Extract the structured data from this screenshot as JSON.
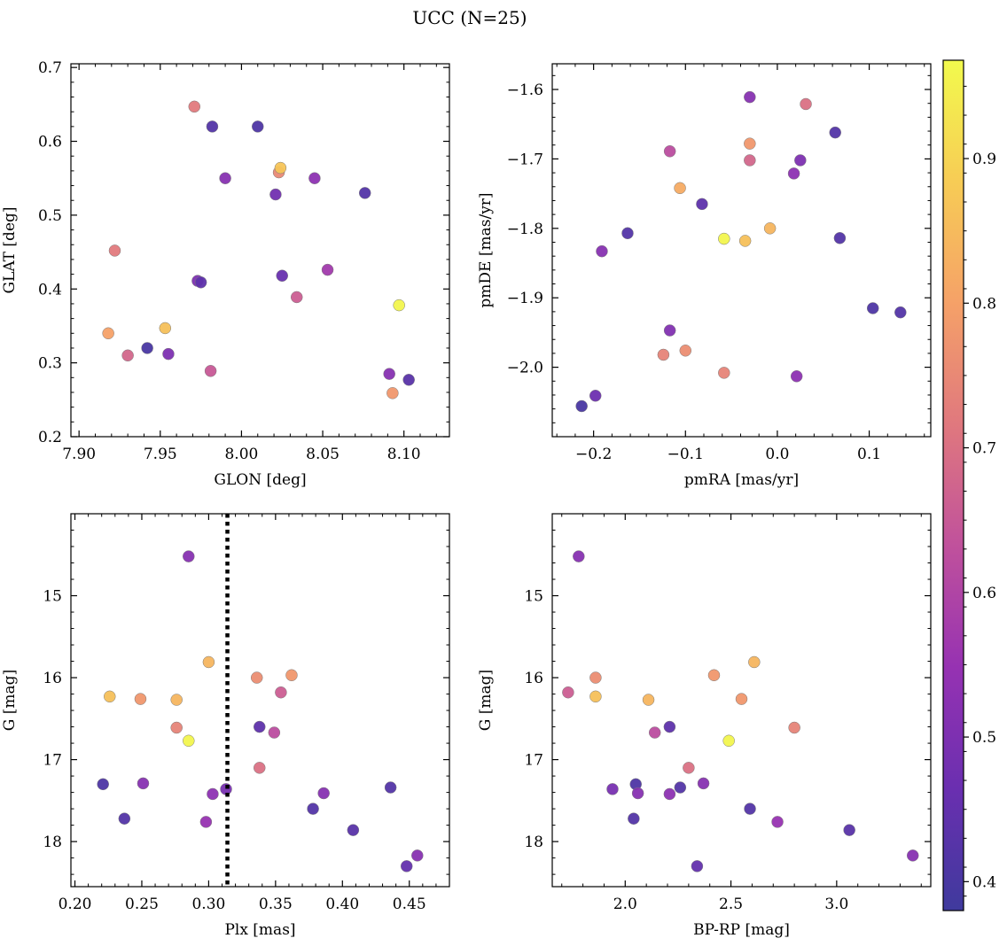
{
  "figure_title": "UCC (N=25)",
  "colormap": {
    "name": "plasma",
    "stops": [
      "#3f3a9d",
      "#6a2fb0",
      "#9632b2",
      "#c0519c",
      "#e0787e",
      "#f5a168",
      "#f7cc55",
      "#f2fa4d"
    ]
  },
  "chart_data": [
    {
      "type": "scatter",
      "xlabel": "GLON [deg]",
      "ylabel": "GLAT [deg]",
      "xlim": [
        7.895,
        8.128
      ],
      "ylim": [
        0.2,
        0.705
      ],
      "xticks": [
        "7.90",
        "7.95",
        "8.00",
        "8.05",
        "8.10"
      ],
      "xtick_values": [
        7.9,
        7.95,
        8.0,
        8.05,
        8.1
      ],
      "yticks": [
        "0.2",
        "0.3",
        "0.4",
        "0.5",
        "0.6",
        "0.7"
      ],
      "ytick_values": [
        0.2,
        0.3,
        0.4,
        0.5,
        0.6,
        0.7
      ],
      "points": [
        {
          "x": 7.971,
          "y": 0.647,
          "c": 0.72
        },
        {
          "x": 7.982,
          "y": 0.62,
          "c": 0.42
        },
        {
          "x": 8.01,
          "y": 0.62,
          "c": 0.41
        },
        {
          "x": 8.023,
          "y": 0.558,
          "c": 0.75
        },
        {
          "x": 8.024,
          "y": 0.564,
          "c": 0.87
        },
        {
          "x": 7.99,
          "y": 0.55,
          "c": 0.52
        },
        {
          "x": 8.045,
          "y": 0.55,
          "c": 0.53
        },
        {
          "x": 8.021,
          "y": 0.528,
          "c": 0.48
        },
        {
          "x": 8.076,
          "y": 0.53,
          "c": 0.42
        },
        {
          "x": 7.922,
          "y": 0.452,
          "c": 0.72
        },
        {
          "x": 8.053,
          "y": 0.426,
          "c": 0.57
        },
        {
          "x": 8.025,
          "y": 0.418,
          "c": 0.46
        },
        {
          "x": 7.973,
          "y": 0.411,
          "c": 0.5
        },
        {
          "x": 7.975,
          "y": 0.409,
          "c": 0.44
        },
        {
          "x": 8.034,
          "y": 0.389,
          "c": 0.66
        },
        {
          "x": 8.097,
          "y": 0.378,
          "c": 0.96
        },
        {
          "x": 7.953,
          "y": 0.347,
          "c": 0.86
        },
        {
          "x": 7.918,
          "y": 0.34,
          "c": 0.8
        },
        {
          "x": 7.942,
          "y": 0.32,
          "c": 0.4
        },
        {
          "x": 7.955,
          "y": 0.312,
          "c": 0.5
        },
        {
          "x": 7.93,
          "y": 0.31,
          "c": 0.68
        },
        {
          "x": 7.981,
          "y": 0.289,
          "c": 0.65
        },
        {
          "x": 8.091,
          "y": 0.285,
          "c": 0.52
        },
        {
          "x": 8.103,
          "y": 0.277,
          "c": 0.43
        },
        {
          "x": 8.093,
          "y": 0.259,
          "c": 0.78
        }
      ]
    },
    {
      "type": "scatter",
      "xlabel": "pmRA [mas/yr]",
      "ylabel": "pmDE [mas/yr]",
      "xlim": [
        -0.245,
        0.167
      ],
      "ylim": [
        -2.1,
        -1.563
      ],
      "xticks": [
        "−0.2",
        "−0.1",
        "0.0",
        "0.1"
      ],
      "xtick_values": [
        -0.2,
        -0.1,
        0.0,
        0.1
      ],
      "yticks": [
        "−1.6",
        "−1.7",
        "−1.8",
        "−1.9",
        "−2.0"
      ],
      "ytick_values": [
        -1.6,
        -1.7,
        -1.8,
        -1.9,
        -2.0
      ],
      "points": [
        {
          "x": -0.03,
          "y": -1.611,
          "c": 0.52
        },
        {
          "x": 0.031,
          "y": -1.621,
          "c": 0.7
        },
        {
          "x": 0.063,
          "y": -1.662,
          "c": 0.42
        },
        {
          "x": -0.117,
          "y": -1.689,
          "c": 0.62
        },
        {
          "x": -0.03,
          "y": -1.678,
          "c": 0.78
        },
        {
          "x": -0.03,
          "y": -1.702,
          "c": 0.68
        },
        {
          "x": 0.025,
          "y": -1.702,
          "c": 0.5
        },
        {
          "x": 0.018,
          "y": -1.721,
          "c": 0.53
        },
        {
          "x": -0.106,
          "y": -1.742,
          "c": 0.82
        },
        {
          "x": -0.082,
          "y": -1.765,
          "c": 0.44
        },
        {
          "x": -0.163,
          "y": -1.807,
          "c": 0.42
        },
        {
          "x": -0.058,
          "y": -1.815,
          "c": 0.96
        },
        {
          "x": -0.035,
          "y": -1.818,
          "c": 0.86
        },
        {
          "x": -0.008,
          "y": -1.8,
          "c": 0.84
        },
        {
          "x": 0.068,
          "y": -1.814,
          "c": 0.42
        },
        {
          "x": -0.191,
          "y": -1.833,
          "c": 0.52
        },
        {
          "x": 0.104,
          "y": -1.915,
          "c": 0.41
        },
        {
          "x": 0.134,
          "y": -1.921,
          "c": 0.42
        },
        {
          "x": -0.117,
          "y": -1.947,
          "c": 0.51
        },
        {
          "x": -0.124,
          "y": -1.982,
          "c": 0.74
        },
        {
          "x": -0.1,
          "y": -1.976,
          "c": 0.76
        },
        {
          "x": -0.058,
          "y": -2.008,
          "c": 0.74
        },
        {
          "x": 0.021,
          "y": -2.013,
          "c": 0.53
        },
        {
          "x": -0.198,
          "y": -2.041,
          "c": 0.47
        },
        {
          "x": -0.213,
          "y": -2.056,
          "c": 0.4
        }
      ]
    },
    {
      "type": "scatter",
      "xlabel": "Plx [mas]",
      "ylabel": "G [mag]",
      "xlim": [
        0.197,
        0.48
      ],
      "ylim": [
        18.55,
        14.0
      ],
      "yinverted": true,
      "vline": 0.314,
      "xticks": [
        "0.20",
        "0.25",
        "0.30",
        "0.35",
        "0.40",
        "0.45"
      ],
      "xtick_values": [
        0.2,
        0.25,
        0.3,
        0.35,
        0.4,
        0.45
      ],
      "yticks": [
        "15",
        "16",
        "17",
        "18"
      ],
      "ytick_values": [
        15,
        16,
        17,
        18
      ],
      "points": [
        {
          "x": 0.285,
          "y": 14.52,
          "c": 0.52
        },
        {
          "x": 0.3,
          "y": 15.81,
          "c": 0.84
        },
        {
          "x": 0.362,
          "y": 15.97,
          "c": 0.78
        },
        {
          "x": 0.336,
          "y": 16.0,
          "c": 0.76
        },
        {
          "x": 0.354,
          "y": 16.18,
          "c": 0.66
        },
        {
          "x": 0.226,
          "y": 16.23,
          "c": 0.86
        },
        {
          "x": 0.249,
          "y": 16.26,
          "c": 0.78
        },
        {
          "x": 0.276,
          "y": 16.27,
          "c": 0.84
        },
        {
          "x": 0.276,
          "y": 16.61,
          "c": 0.74
        },
        {
          "x": 0.338,
          "y": 16.6,
          "c": 0.44
        },
        {
          "x": 0.349,
          "y": 16.67,
          "c": 0.62
        },
        {
          "x": 0.285,
          "y": 16.77,
          "c": 0.96
        },
        {
          "x": 0.338,
          "y": 17.1,
          "c": 0.7
        },
        {
          "x": 0.221,
          "y": 17.3,
          "c": 0.41
        },
        {
          "x": 0.251,
          "y": 17.29,
          "c": 0.52
        },
        {
          "x": 0.303,
          "y": 17.42,
          "c": 0.53
        },
        {
          "x": 0.313,
          "y": 17.36,
          "c": 0.49
        },
        {
          "x": 0.386,
          "y": 17.41,
          "c": 0.52
        },
        {
          "x": 0.436,
          "y": 17.34,
          "c": 0.42
        },
        {
          "x": 0.378,
          "y": 17.6,
          "c": 0.42
        },
        {
          "x": 0.237,
          "y": 17.72,
          "c": 0.42
        },
        {
          "x": 0.298,
          "y": 17.76,
          "c": 0.55
        },
        {
          "x": 0.408,
          "y": 17.86,
          "c": 0.43
        },
        {
          "x": 0.456,
          "y": 18.17,
          "c": 0.52
        },
        {
          "x": 0.448,
          "y": 18.3,
          "c": 0.45
        }
      ]
    },
    {
      "type": "scatter",
      "xlabel": "BP-RP [mag]",
      "ylabel": "G [mag]",
      "xlim": [
        1.655,
        3.445
      ],
      "ylim": [
        18.55,
        14.0
      ],
      "yinverted": true,
      "xticks": [
        "2.0",
        "2.5",
        "3.0"
      ],
      "xtick_values": [
        2.0,
        2.5,
        3.0
      ],
      "yticks": [
        "15",
        "16",
        "17",
        "18"
      ],
      "ytick_values": [
        15,
        16,
        17,
        18
      ],
      "points": [
        {
          "x": 1.78,
          "y": 14.52,
          "c": 0.52
        },
        {
          "x": 2.61,
          "y": 15.81,
          "c": 0.84
        },
        {
          "x": 2.42,
          "y": 15.97,
          "c": 0.78
        },
        {
          "x": 1.86,
          "y": 16.0,
          "c": 0.76
        },
        {
          "x": 1.73,
          "y": 16.18,
          "c": 0.66
        },
        {
          "x": 1.86,
          "y": 16.23,
          "c": 0.86
        },
        {
          "x": 2.55,
          "y": 16.26,
          "c": 0.78
        },
        {
          "x": 2.11,
          "y": 16.27,
          "c": 0.84
        },
        {
          "x": 2.8,
          "y": 16.61,
          "c": 0.74
        },
        {
          "x": 2.21,
          "y": 16.6,
          "c": 0.44
        },
        {
          "x": 2.14,
          "y": 16.67,
          "c": 0.62
        },
        {
          "x": 2.49,
          "y": 16.77,
          "c": 0.96
        },
        {
          "x": 2.3,
          "y": 17.1,
          "c": 0.7
        },
        {
          "x": 2.05,
          "y": 17.3,
          "c": 0.41
        },
        {
          "x": 2.37,
          "y": 17.29,
          "c": 0.52
        },
        {
          "x": 2.21,
          "y": 17.42,
          "c": 0.53
        },
        {
          "x": 1.94,
          "y": 17.36,
          "c": 0.49
        },
        {
          "x": 2.06,
          "y": 17.41,
          "c": 0.52
        },
        {
          "x": 2.26,
          "y": 17.34,
          "c": 0.42
        },
        {
          "x": 2.59,
          "y": 17.6,
          "c": 0.42
        },
        {
          "x": 2.04,
          "y": 17.72,
          "c": 0.42
        },
        {
          "x": 2.72,
          "y": 17.76,
          "c": 0.55
        },
        {
          "x": 3.06,
          "y": 17.86,
          "c": 0.43
        },
        {
          "x": 3.36,
          "y": 18.17,
          "c": 0.52
        },
        {
          "x": 2.34,
          "y": 18.3,
          "c": 0.45
        }
      ]
    }
  ],
  "colorbar": {
    "vmin": 0.38,
    "vmax": 0.968,
    "ticks": [
      "0.4",
      "0.5",
      "0.6",
      "0.7",
      "0.8",
      "0.9"
    ],
    "tick_values": [
      0.4,
      0.5,
      0.6,
      0.7,
      0.8,
      0.9
    ]
  }
}
